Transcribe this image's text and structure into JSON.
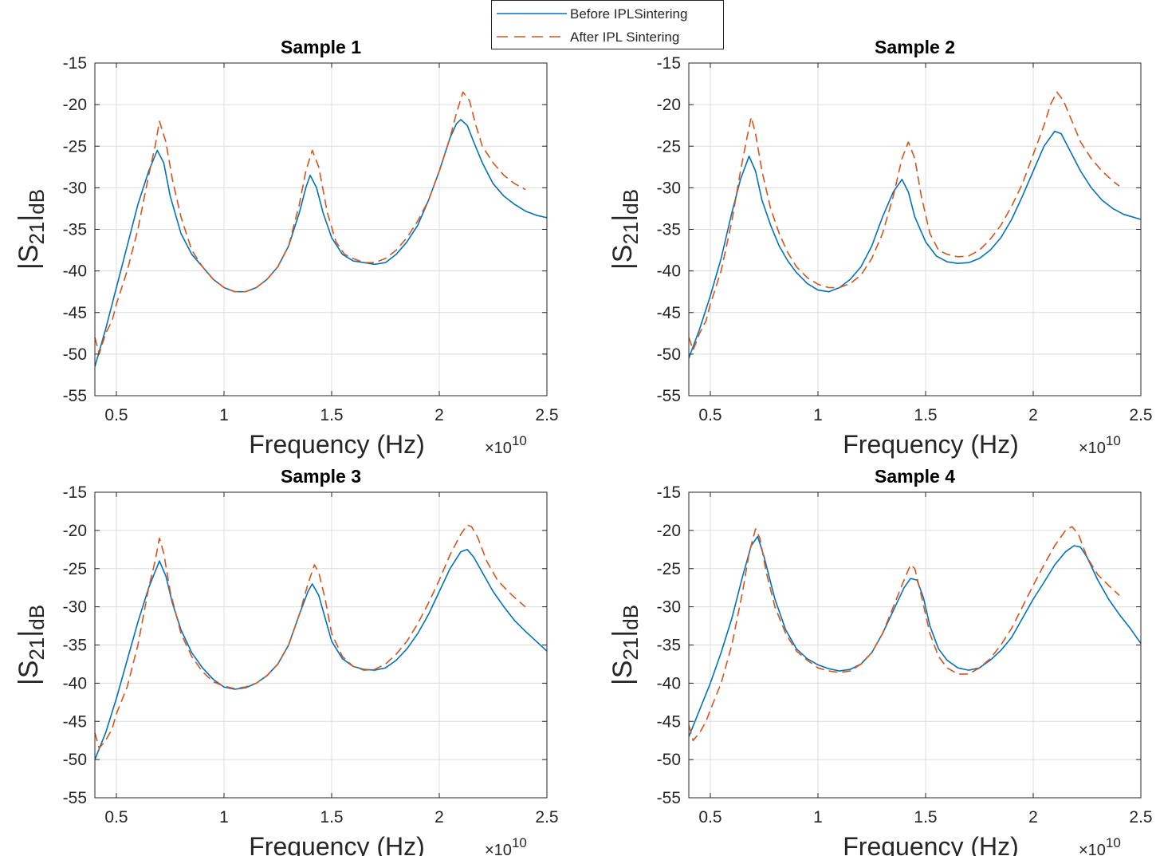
{
  "legend": {
    "before_label": "Before IPLSintering",
    "after_label": "After IPL Sintering"
  },
  "colors": {
    "before": "#0072BD",
    "after": "#D95319",
    "axis": "#262626",
    "grid": "#dcdcdc"
  },
  "axis_text": {
    "xlabel": "Frequency (Hz)",
    "ylabel_main": "|S",
    "ylabel_sub": "21",
    "ylabel_end": "|",
    "ylabel_sub2": "dB",
    "exponent_base": "×10",
    "exponent_power": "10",
    "xtick_labels": [
      "0.5",
      "1",
      "1.5",
      "2",
      "2.5"
    ],
    "ytick_labels": [
      "-15",
      "-20",
      "-25",
      "-30",
      "-35",
      "-40",
      "-45",
      "-50",
      "-55"
    ]
  },
  "chart_data": [
    {
      "type": "line",
      "title": "Sample 1",
      "xlabel": "Frequency (Hz)",
      "ylabel": "|S21|dB",
      "x_scale_note": "×10^10",
      "xlim": [
        0.4,
        2.5
      ],
      "ylim": [
        -55,
        -15
      ],
      "grid": true,
      "series": [
        {
          "name": "Before IPLSintering",
          "style": "solid",
          "x": [
            0.4,
            0.45,
            0.5,
            0.55,
            0.6,
            0.65,
            0.69,
            0.72,
            0.75,
            0.8,
            0.85,
            0.9,
            0.95,
            1.0,
            1.05,
            1.1,
            1.15,
            1.2,
            1.25,
            1.3,
            1.35,
            1.38,
            1.4,
            1.43,
            1.46,
            1.5,
            1.55,
            1.6,
            1.65,
            1.7,
            1.75,
            1.8,
            1.85,
            1.9,
            1.95,
            2.0,
            2.05,
            2.08,
            2.1,
            2.13,
            2.16,
            2.2,
            2.25,
            2.3,
            2.35,
            2.4,
            2.45,
            2.5
          ],
          "y": [
            -51.5,
            -47,
            -42,
            -37,
            -32,
            -28,
            -25.5,
            -27,
            -31,
            -35.5,
            -38,
            -39.5,
            -41,
            -42,
            -42.5,
            -42.5,
            -42,
            -41,
            -39.5,
            -37,
            -33,
            -30,
            -28.5,
            -30,
            -33,
            -36,
            -38,
            -38.8,
            -39,
            -39.2,
            -39,
            -38,
            -36.5,
            -34.5,
            -31.5,
            -28,
            -24,
            -22.3,
            -21.8,
            -22.5,
            -24.5,
            -27,
            -29.5,
            -31,
            -32,
            -32.8,
            -33.3,
            -33.6
          ]
        },
        {
          "name": "After IPL Sintering",
          "style": "dashed",
          "x": [
            0.4,
            0.42,
            0.45,
            0.48,
            0.5,
            0.55,
            0.6,
            0.65,
            0.68,
            0.7,
            0.73,
            0.76,
            0.8,
            0.85,
            0.9,
            0.95,
            1.0,
            1.05,
            1.1,
            1.15,
            1.2,
            1.25,
            1.3,
            1.35,
            1.38,
            1.41,
            1.44,
            1.48,
            1.52,
            1.56,
            1.6,
            1.65,
            1.7,
            1.75,
            1.8,
            1.85,
            1.9,
            1.95,
            2.0,
            2.05,
            2.08,
            2.11,
            2.14,
            2.17,
            2.2,
            2.25,
            2.3,
            2.35,
            2.4
          ],
          "y": [
            -48,
            -50,
            -47.5,
            -46,
            -44,
            -40,
            -35,
            -28.5,
            -25,
            -22,
            -24.5,
            -29,
            -33.5,
            -37.5,
            -39.5,
            -41,
            -42,
            -42.5,
            -42.5,
            -42,
            -41,
            -39.5,
            -37,
            -32,
            -28,
            -25.5,
            -27.5,
            -33,
            -36.5,
            -38,
            -38.5,
            -39,
            -39,
            -38.5,
            -37.5,
            -36,
            -34,
            -31.5,
            -28,
            -24,
            -21,
            -18.5,
            -19.5,
            -22.5,
            -25,
            -27,
            -28.5,
            -29.5,
            -30.2
          ]
        }
      ]
    },
    {
      "type": "line",
      "title": "Sample 2",
      "xlabel": "Frequency (Hz)",
      "ylabel": "|S21|dB",
      "x_scale_note": "×10^10",
      "xlim": [
        0.4,
        2.5
      ],
      "ylim": [
        -55,
        -15
      ],
      "grid": true,
      "series": [
        {
          "name": "Before IPLSintering",
          "style": "solid",
          "x": [
            0.4,
            0.45,
            0.5,
            0.55,
            0.6,
            0.64,
            0.68,
            0.71,
            0.74,
            0.78,
            0.82,
            0.86,
            0.9,
            0.95,
            1.0,
            1.05,
            1.1,
            1.15,
            1.2,
            1.25,
            1.3,
            1.35,
            1.39,
            1.42,
            1.45,
            1.5,
            1.55,
            1.6,
            1.65,
            1.7,
            1.75,
            1.8,
            1.85,
            1.9,
            1.95,
            2.0,
            2.05,
            2.1,
            2.13,
            2.17,
            2.22,
            2.27,
            2.32,
            2.37,
            2.42,
            2.5
          ],
          "y": [
            -50.5,
            -47,
            -43,
            -38.5,
            -33,
            -29,
            -26.2,
            -28,
            -31.5,
            -34.5,
            -37,
            -38.8,
            -40.2,
            -41.5,
            -42.3,
            -42.5,
            -42,
            -41,
            -39.5,
            -37,
            -33.5,
            -30.5,
            -29,
            -30.5,
            -33.5,
            -36.5,
            -38.2,
            -38.9,
            -39.1,
            -39,
            -38.5,
            -37.5,
            -36,
            -33.8,
            -31,
            -28,
            -25,
            -23.2,
            -23.5,
            -25.5,
            -28,
            -30,
            -31.5,
            -32.5,
            -33.2,
            -33.8
          ]
        },
        {
          "name": "After IPL Sintering",
          "style": "dashed",
          "x": [
            0.4,
            0.42,
            0.45,
            0.48,
            0.5,
            0.55,
            0.6,
            0.64,
            0.67,
            0.69,
            0.71,
            0.74,
            0.78,
            0.82,
            0.86,
            0.9,
            0.95,
            1.0,
            1.05,
            1.1,
            1.15,
            1.2,
            1.25,
            1.3,
            1.35,
            1.39,
            1.42,
            1.45,
            1.48,
            1.52,
            1.56,
            1.6,
            1.65,
            1.7,
            1.75,
            1.8,
            1.85,
            1.9,
            1.95,
            2.0,
            2.05,
            2.08,
            2.11,
            2.14,
            2.18,
            2.22,
            2.27,
            2.32,
            2.37,
            2.4
          ],
          "y": [
            -48,
            -49.5,
            -47.5,
            -46,
            -44,
            -40,
            -34,
            -28,
            -24,
            -21.5,
            -23.5,
            -28,
            -32.5,
            -35.5,
            -37.8,
            -39.5,
            -40.8,
            -41.6,
            -42,
            -42,
            -41.5,
            -40.5,
            -38.5,
            -35.5,
            -31,
            -26.5,
            -24.5,
            -26.5,
            -31,
            -35.5,
            -37.5,
            -38,
            -38.3,
            -38.2,
            -37.5,
            -36.2,
            -34.5,
            -32.2,
            -29.5,
            -26,
            -22.5,
            -20,
            -18.5,
            -19.5,
            -22,
            -24.5,
            -26.5,
            -28,
            -29.2,
            -29.8
          ]
        }
      ]
    },
    {
      "type": "line",
      "title": "Sample 3",
      "xlabel": "Frequency (Hz)",
      "ylabel": "|S21|dB",
      "x_scale_note": "×10^10",
      "xlim": [
        0.4,
        2.5
      ],
      "ylim": [
        -55,
        -15
      ],
      "grid": true,
      "series": [
        {
          "name": "Before IPLSintering",
          "style": "solid",
          "x": [
            0.4,
            0.45,
            0.5,
            0.55,
            0.6,
            0.65,
            0.7,
            0.73,
            0.76,
            0.8,
            0.85,
            0.9,
            0.95,
            1.0,
            1.05,
            1.1,
            1.15,
            1.2,
            1.25,
            1.3,
            1.35,
            1.39,
            1.41,
            1.44,
            1.47,
            1.5,
            1.55,
            1.6,
            1.65,
            1.7,
            1.75,
            1.8,
            1.85,
            1.9,
            1.95,
            2.0,
            2.05,
            2.1,
            2.13,
            2.16,
            2.2,
            2.25,
            2.3,
            2.35,
            2.4,
            2.45,
            2.5
          ],
          "y": [
            -50,
            -46.5,
            -42,
            -37,
            -32,
            -27.5,
            -24,
            -26,
            -29.5,
            -33,
            -36,
            -38,
            -39.5,
            -40.5,
            -40.8,
            -40.6,
            -40,
            -39,
            -37.5,
            -35,
            -31,
            -28,
            -27,
            -28.5,
            -31.5,
            -34.5,
            -36.8,
            -37.8,
            -38.2,
            -38.3,
            -38,
            -37,
            -35.5,
            -33.5,
            -31,
            -28,
            -25,
            -22.8,
            -22.5,
            -23.5,
            -25.5,
            -28,
            -30,
            -31.8,
            -33.2,
            -34.5,
            -35.8
          ]
        },
        {
          "name": "After IPL Sintering",
          "style": "dashed",
          "x": [
            0.4,
            0.42,
            0.45,
            0.48,
            0.5,
            0.55,
            0.6,
            0.65,
            0.68,
            0.7,
            0.72,
            0.75,
            0.8,
            0.85,
            0.9,
            0.95,
            1.0,
            1.05,
            1.1,
            1.15,
            1.2,
            1.25,
            1.3,
            1.35,
            1.39,
            1.42,
            1.44,
            1.47,
            1.5,
            1.55,
            1.6,
            1.65,
            1.7,
            1.75,
            1.8,
            1.85,
            1.9,
            1.95,
            2.0,
            2.05,
            2.1,
            2.13,
            2.15,
            2.18,
            2.22,
            2.27,
            2.32,
            2.37,
            2.4
          ],
          "y": [
            -46.5,
            -48.5,
            -47.5,
            -46,
            -44,
            -40.5,
            -35,
            -27.5,
            -24,
            -21,
            -23,
            -28,
            -33.5,
            -36.5,
            -38.5,
            -39.8,
            -40.4,
            -40.7,
            -40.5,
            -40,
            -39,
            -37.5,
            -35,
            -31,
            -27,
            -24.5,
            -25.5,
            -29,
            -33.5,
            -36.5,
            -37.8,
            -38.3,
            -38.2,
            -37.5,
            -36.2,
            -34.5,
            -32.2,
            -29.5,
            -26.5,
            -23.2,
            -20.5,
            -19.3,
            -19.5,
            -21,
            -24,
            -26.5,
            -28,
            -29.3,
            -30
          ]
        }
      ]
    },
    {
      "type": "line",
      "title": "Sample 4",
      "xlabel": "Frequency (Hz)",
      "ylabel": "|S21|dB",
      "x_scale_note": "×10^10",
      "xlim": [
        0.4,
        2.5
      ],
      "ylim": [
        -55,
        -15
      ],
      "grid": true,
      "series": [
        {
          "name": "Before IPLSintering",
          "style": "solid",
          "x": [
            0.4,
            0.45,
            0.5,
            0.55,
            0.6,
            0.65,
            0.69,
            0.72,
            0.75,
            0.8,
            0.85,
            0.9,
            0.95,
            1.0,
            1.05,
            1.1,
            1.15,
            1.2,
            1.25,
            1.3,
            1.35,
            1.4,
            1.43,
            1.46,
            1.49,
            1.52,
            1.56,
            1.6,
            1.65,
            1.7,
            1.75,
            1.8,
            1.85,
            1.9,
            1.95,
            2.0,
            2.05,
            2.1,
            2.15,
            2.19,
            2.22,
            2.25,
            2.3,
            2.35,
            2.4,
            2.45,
            2.5
          ],
          "y": [
            -47,
            -43.5,
            -40,
            -36,
            -31.5,
            -26,
            -22,
            -20.8,
            -23.5,
            -29,
            -33,
            -35.5,
            -36.8,
            -37.6,
            -38.1,
            -38.4,
            -38.2,
            -37.5,
            -36,
            -33.5,
            -30.5,
            -27.5,
            -26.3,
            -26.5,
            -28.8,
            -32.5,
            -35.5,
            -37,
            -38,
            -38.3,
            -38,
            -37,
            -35.7,
            -34,
            -31.5,
            -29,
            -26.8,
            -24.5,
            -22.8,
            -22,
            -22.2,
            -23.5,
            -26.5,
            -29,
            -31,
            -32.8,
            -34.8
          ]
        },
        {
          "name": "After IPL Sintering",
          "style": "dashed",
          "x": [
            0.4,
            0.42,
            0.45,
            0.48,
            0.5,
            0.55,
            0.6,
            0.65,
            0.68,
            0.71,
            0.73,
            0.76,
            0.8,
            0.85,
            0.9,
            0.95,
            1.0,
            1.05,
            1.1,
            1.15,
            1.2,
            1.25,
            1.3,
            1.35,
            1.4,
            1.43,
            1.45,
            1.48,
            1.52,
            1.56,
            1.6,
            1.65,
            1.7,
            1.75,
            1.8,
            1.85,
            1.9,
            1.95,
            2.0,
            2.05,
            2.1,
            2.15,
            2.18,
            2.21,
            2.25,
            2.3,
            2.35,
            2.4
          ],
          "y": [
            -45.5,
            -47.5,
            -46.5,
            -45,
            -43.5,
            -40,
            -35,
            -28,
            -23,
            -19.8,
            -21,
            -25.5,
            -30,
            -33.5,
            -35.8,
            -37,
            -38,
            -38.4,
            -38.6,
            -38.4,
            -37.5,
            -36,
            -33.5,
            -30,
            -26.5,
            -24.5,
            -25,
            -28.5,
            -33.5,
            -36.5,
            -38,
            -38.8,
            -38.8,
            -38,
            -36.8,
            -35,
            -32.8,
            -30,
            -27.2,
            -24.5,
            -22,
            -20,
            -19.5,
            -20.5,
            -23.5,
            -25.8,
            -27.2,
            -28.5
          ]
        }
      ]
    }
  ]
}
